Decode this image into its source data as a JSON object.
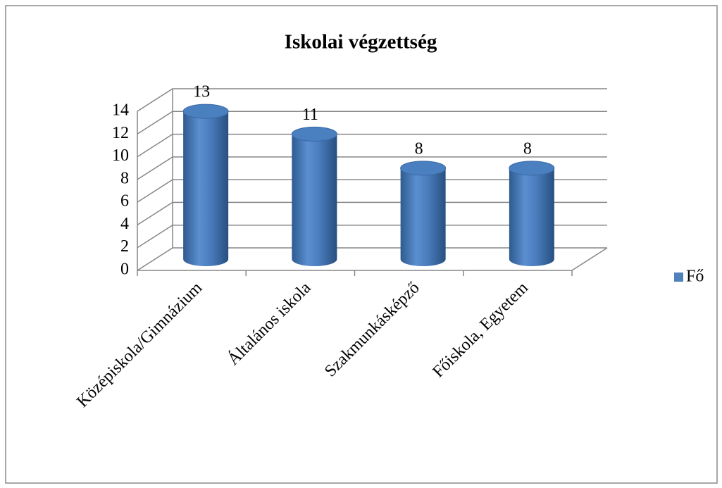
{
  "chart_data": {
    "type": "bar",
    "title": "Iskolai végzettség",
    "categories": [
      "Középiskola/Gimnázium",
      "Általános iskola",
      "Szakmunkásképző",
      "Főiskola, Egyetem"
    ],
    "series": [
      {
        "name": "Fő",
        "color": "#4f81bd",
        "values": [
          13,
          11,
          8,
          8
        ]
      }
    ],
    "ylim": [
      0,
      14
    ],
    "yticks": [
      0,
      2,
      4,
      6,
      8,
      10,
      12,
      14
    ],
    "grid": true,
    "legend": "right"
  }
}
